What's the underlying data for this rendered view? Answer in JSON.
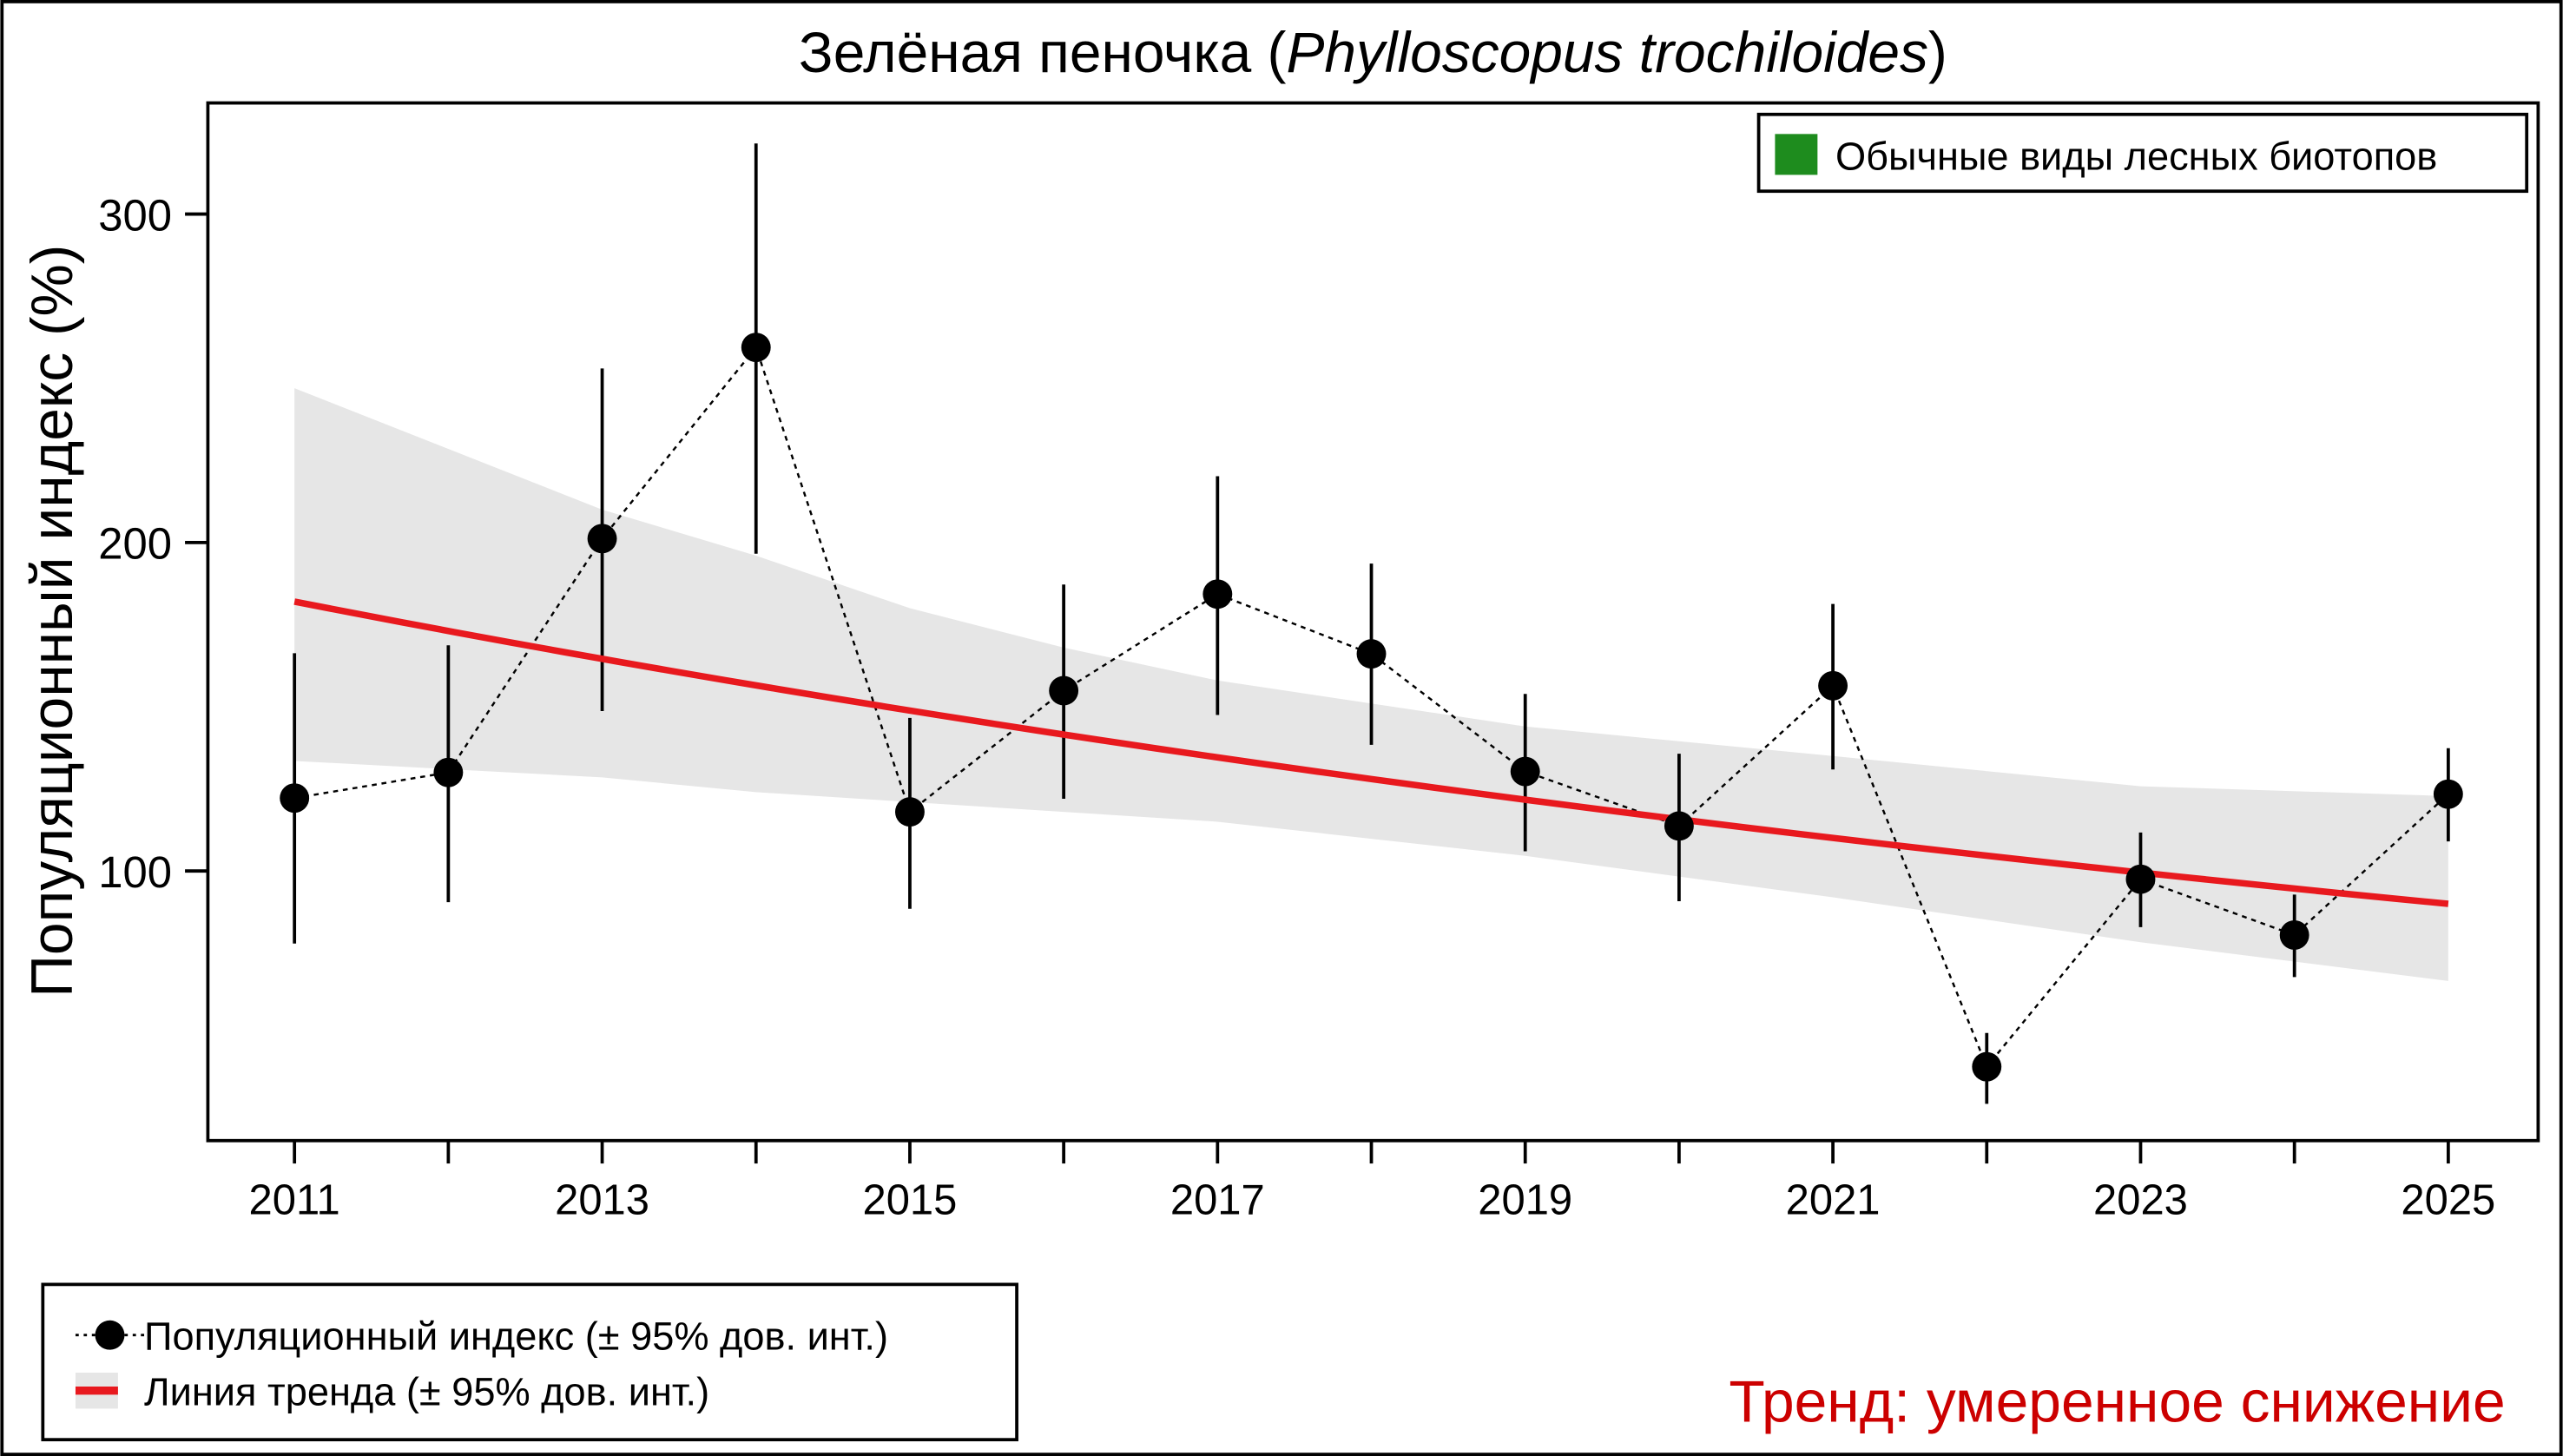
{
  "chart_data": {
    "type": "line",
    "title_main": "Зелёная пеночка (",
    "title_italic": "Phylloscopus trochiloides",
    "title_end": ")",
    "xlabel": "",
    "ylabel": "Популяционный индекс (%)",
    "xlim": [
      2010.5,
      2025.7
    ],
    "ylim": [
      18,
      334
    ],
    "x_ticks": [
      2011,
      2012,
      2013,
      2014,
      2015,
      2016,
      2017,
      2018,
      2019,
      2020,
      2021,
      2022,
      2023,
      2024,
      2025
    ],
    "x_tick_labels": [
      "2011",
      "2013",
      "2015",
      "2017",
      "2019",
      "2021",
      "2023",
      "2025"
    ],
    "y_ticks": [
      100,
      200,
      300
    ],
    "y_tick_labels": [
      "100",
      "200",
      "300"
    ],
    "grid": false,
    "index_series": {
      "name": "Популяционный индекс (± 95% дов. инт.)",
      "x": [
        2011,
        2012,
        2013,
        2014,
        2015,
        2016,
        2017,
        2018,
        2019,
        2020,
        2021,
        2022,
        2023,
        2024,
        2025
      ],
      "y": [
        122.2,
        130,
        201.2,
        259.4,
        118,
        154.9,
        184.3,
        166.1,
        130.3,
        113.7,
        156.4,
        40.4,
        97.5,
        80.5,
        123.4
      ],
      "ci_low": [
        77.9,
        90.5,
        148.7,
        196.6,
        88.5,
        122,
        147.5,
        138.4,
        106,
        90.8,
        130.9,
        29.1,
        82.9,
        67.7,
        109
      ],
      "ci_high": [
        166.3,
        168.7,
        253,
        321.5,
        146.6,
        187.2,
        220.2,
        193.6,
        153.9,
        135.7,
        181.3,
        50.7,
        111.7,
        92.8,
        137.4
      ],
      "color": "#000000"
    },
    "trend_series": {
      "name": "Линия тренда (± 95% дов. инт.)",
      "x": [
        2011,
        2025
      ],
      "y": [
        182,
        90
      ],
      "color": "#e8191e",
      "band_color": "#e6e6e6",
      "band_x": [
        2011,
        2013,
        2014,
        2015,
        2016,
        2017,
        2019,
        2021,
        2023,
        2025
      ],
      "band_low": [
        133.5,
        128.5,
        124,
        121,
        118,
        115,
        104.6,
        92,
        78.3,
        66.5
      ],
      "band_high": [
        247,
        210,
        196,
        180,
        168,
        158,
        144,
        135,
        125.8,
        122.8
      ]
    },
    "group_legend": {
      "label": "Обычные виды лесных биотопов",
      "color": "#1e8c1e",
      "placement": "top-right"
    },
    "series_legend_placement": "bottom-left",
    "trend_text": "Тренд: умеренное снижение",
    "trend_text_color": "#cc0000"
  }
}
